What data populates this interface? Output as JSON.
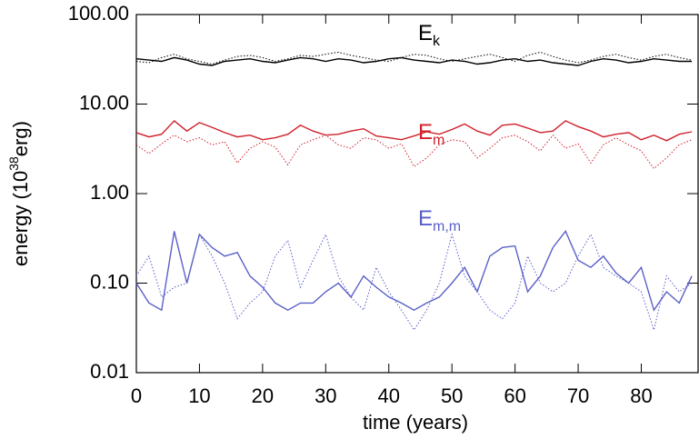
{
  "chart_data": {
    "type": "line",
    "log_y": true,
    "xlabel": "time (years)",
    "ylabel_parts": [
      "energy (10",
      "38",
      "erg)"
    ],
    "xlim": [
      0,
      89
    ],
    "xticks": [
      0,
      10,
      20,
      30,
      40,
      50,
      60,
      70,
      80
    ],
    "ylim": [
      0.01,
      100
    ],
    "yticks": [
      {
        "value": 0.01,
        "label": "0.01"
      },
      {
        "value": 0.1,
        "label": "0.10"
      },
      {
        "value": 1,
        "label": "1.00"
      },
      {
        "value": 10,
        "label": "10.00"
      },
      {
        "value": 100,
        "label": "100.00"
      }
    ],
    "x": [
      0,
      2,
      4,
      6,
      8,
      10,
      12,
      14,
      16,
      18,
      20,
      22,
      24,
      26,
      28,
      30,
      32,
      34,
      36,
      38,
      40,
      42,
      44,
      46,
      48,
      50,
      52,
      54,
      56,
      58,
      60,
      62,
      64,
      66,
      68,
      70,
      72,
      74,
      76,
      78,
      80,
      82,
      84,
      86,
      88
    ],
    "series": [
      {
        "color": "#000000",
        "dash": "solid",
        "values": [
          32,
          31,
          30,
          33,
          31,
          28,
          27,
          30,
          31,
          32,
          30,
          29,
          31,
          33,
          32,
          30,
          32,
          31,
          29,
          30,
          32,
          33,
          31,
          30,
          29,
          31,
          30,
          28,
          29,
          31,
          32,
          30,
          31,
          29,
          28,
          27,
          30,
          32,
          31,
          29,
          30,
          32,
          31,
          30,
          30
        ]
      },
      {
        "color": "#000000",
        "dash": "dot",
        "values": [
          30,
          29,
          33,
          36,
          32,
          30,
          28,
          31,
          34,
          35,
          33,
          30,
          32,
          35,
          34,
          36,
          38,
          35,
          33,
          31,
          30,
          33,
          36,
          35,
          32,
          30,
          32,
          34,
          36,
          33,
          30,
          35,
          38,
          34,
          31,
          29,
          31,
          34,
          36,
          33,
          31,
          34,
          36,
          33,
          31
        ]
      },
      {
        "color": "#d0202c",
        "dash": "solid",
        "values": [
          4.8,
          4.3,
          4.6,
          6.5,
          5.0,
          6.2,
          5.5,
          4.8,
          4.3,
          4.5,
          4.0,
          4.2,
          4.6,
          5.8,
          5.0,
          4.5,
          4.6,
          5.0,
          5.3,
          4.4,
          4.2,
          4.0,
          4.4,
          4.9,
          4.6,
          5.2,
          6.0,
          5.0,
          4.5,
          5.8,
          6.0,
          5.4,
          4.8,
          5.0,
          6.5,
          5.6,
          5.0,
          4.3,
          4.6,
          4.8,
          4.0,
          4.5,
          3.9,
          4.6,
          4.9
        ]
      },
      {
        "color": "#d0202c",
        "dash": "dot",
        "values": [
          3.5,
          2.8,
          3.6,
          4.5,
          3.8,
          4.2,
          3.5,
          3.8,
          2.2,
          3.2,
          3.8,
          3.3,
          2.1,
          3.5,
          4.0,
          4.5,
          3.5,
          3.2,
          4.2,
          4.0,
          3.2,
          3.6,
          2.0,
          2.5,
          3.5,
          4.0,
          3.8,
          2.5,
          3.2,
          4.2,
          4.5,
          3.8,
          3.0,
          4.5,
          3.2,
          3.6,
          2.2,
          3.5,
          4.2,
          3.5,
          3.0,
          1.9,
          2.5,
          3.5,
          4.0
        ]
      },
      {
        "color": "#5a5fc8",
        "dash": "solid",
        "values": [
          0.1,
          0.06,
          0.05,
          0.38,
          0.1,
          0.35,
          0.25,
          0.2,
          0.22,
          0.12,
          0.09,
          0.06,
          0.05,
          0.06,
          0.06,
          0.08,
          0.1,
          0.07,
          0.12,
          0.09,
          0.07,
          0.06,
          0.05,
          0.06,
          0.07,
          0.1,
          0.15,
          0.08,
          0.2,
          0.25,
          0.26,
          0.08,
          0.12,
          0.25,
          0.38,
          0.18,
          0.15,
          0.2,
          0.13,
          0.1,
          0.15,
          0.05,
          0.08,
          0.06,
          0.12
        ]
      },
      {
        "color": "#5a5fc8",
        "dash": "dot",
        "values": [
          0.12,
          0.2,
          0.07,
          0.09,
          0.1,
          0.35,
          0.2,
          0.1,
          0.04,
          0.06,
          0.08,
          0.2,
          0.3,
          0.09,
          0.18,
          0.35,
          0.12,
          0.07,
          0.05,
          0.15,
          0.08,
          0.05,
          0.03,
          0.05,
          0.1,
          0.35,
          0.12,
          0.08,
          0.05,
          0.04,
          0.06,
          0.2,
          0.1,
          0.08,
          0.1,
          0.2,
          0.35,
          0.15,
          0.12,
          0.1,
          0.08,
          0.03,
          0.12,
          0.08,
          0.1
        ]
      }
    ],
    "annotations": [
      {
        "text": "E",
        "sub": "k",
        "color": "#000000"
      },
      {
        "text": "E",
        "sub": "m",
        "color": "#d0202c"
      },
      {
        "text": "E",
        "sub": "m,m",
        "color": "#5a5fc8"
      }
    ]
  }
}
